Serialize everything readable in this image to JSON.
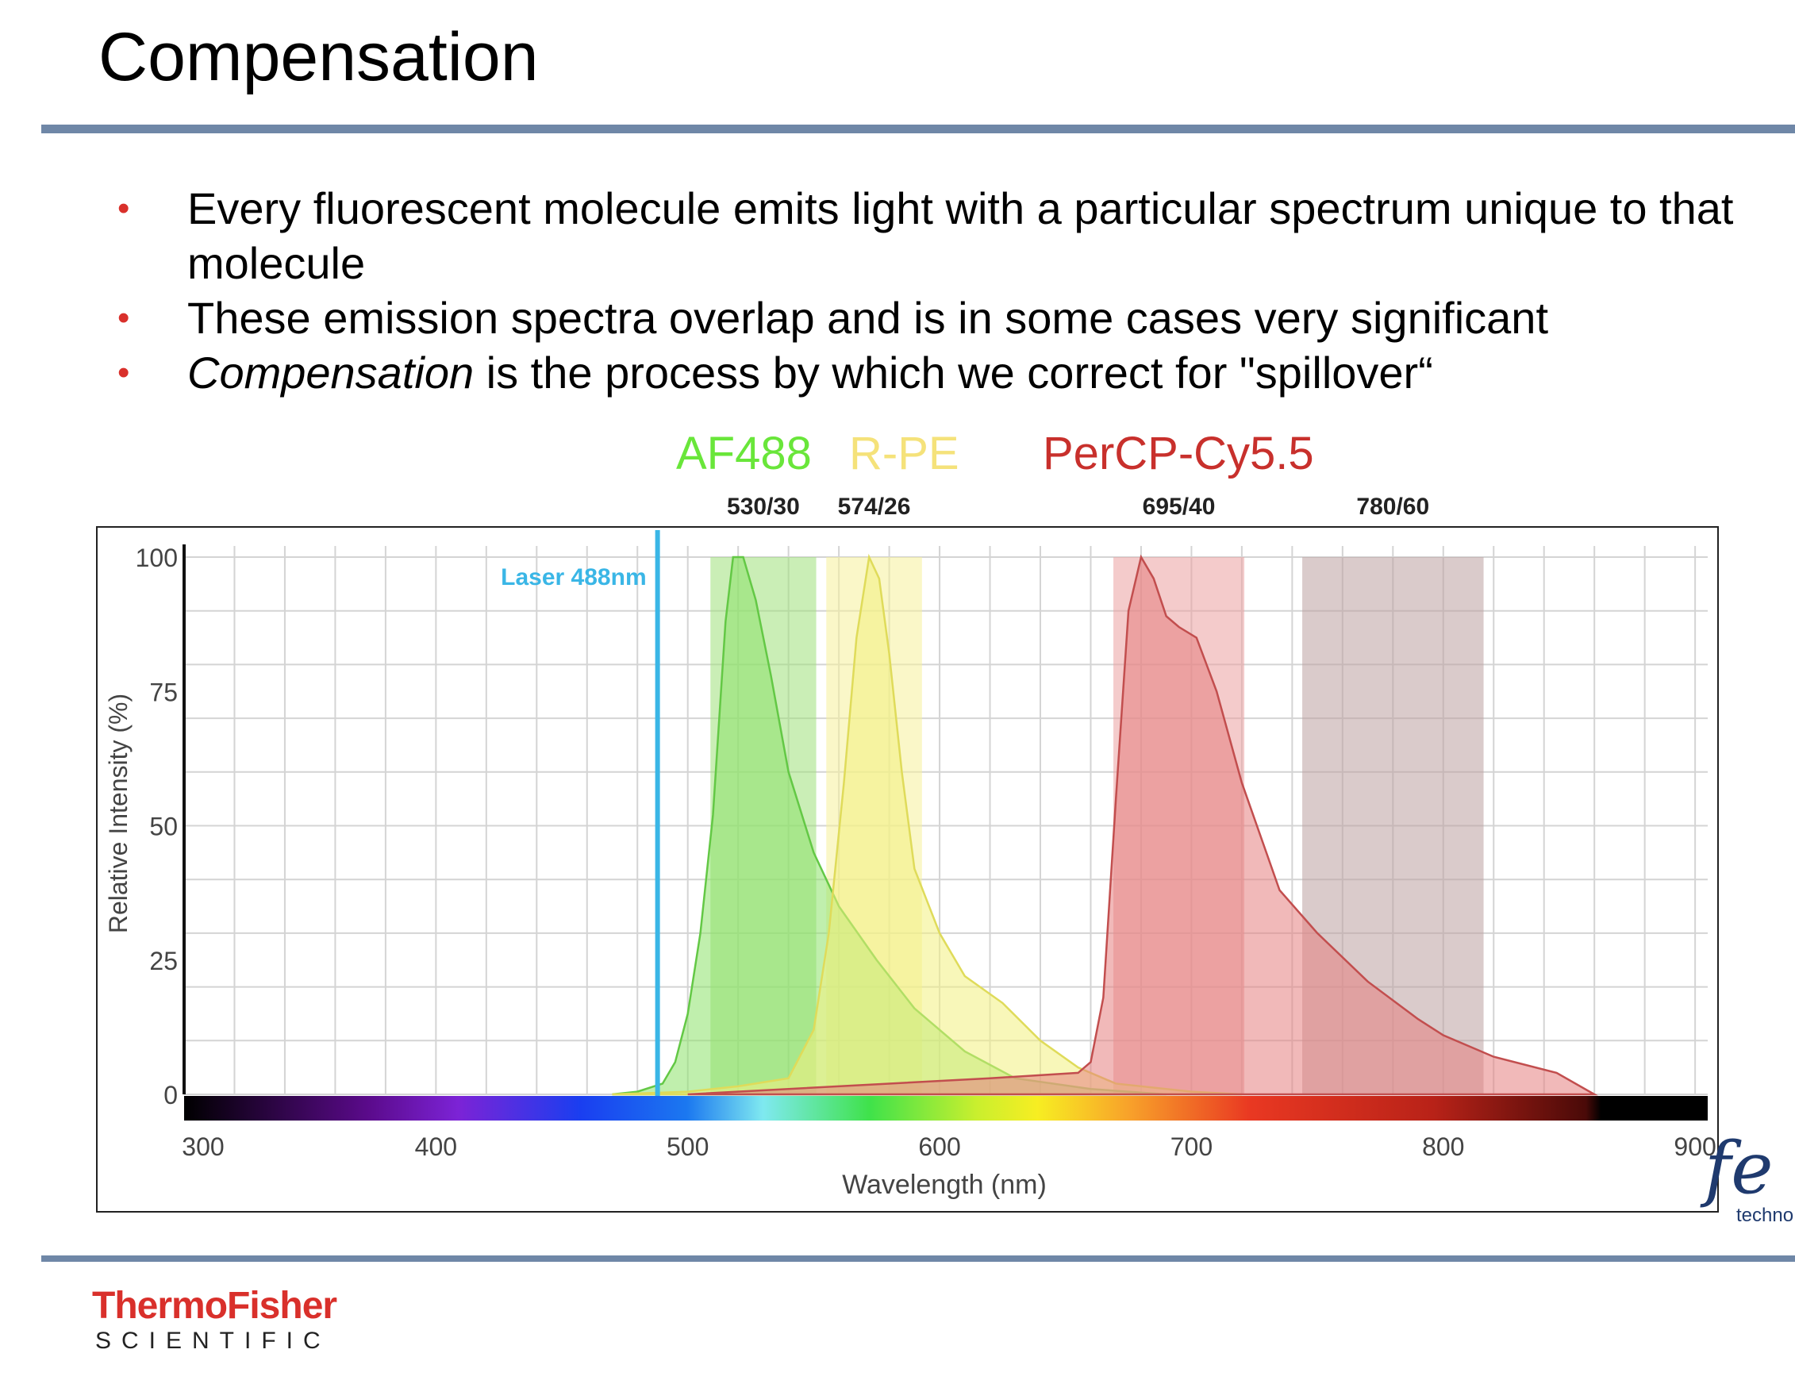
{
  "title": "Compensation",
  "bullets": [
    {
      "prefix": "",
      "text": "Every fluorescent molecule emits light with a particular spectrum unique to that molecule"
    },
    {
      "prefix": "",
      "text": "These emission spectra overlap  and is in some cases very significant"
    },
    {
      "prefix": "Compensation",
      "text": " is the process by which we correct for \"spillover“"
    }
  ],
  "bullet_symbol": "•",
  "legend": [
    {
      "label": "AF488",
      "color": "#69e63a"
    },
    {
      "label": "R-PE",
      "color": "#f5e27a"
    },
    {
      "label": "PerCP-Cy5.5",
      "color": "#c8302c"
    }
  ],
  "brand": {
    "name": "ThermoFisher",
    "sub": "SCIENTIFIC"
  },
  "corner_logo": {
    "mark": "fe",
    "text": "techno"
  },
  "chart_data": {
    "type": "area",
    "xlabel": "Wavelength (nm)",
    "ylabel": "Relative Intensity (%)",
    "xlim": [
      300,
      905
    ],
    "ylim": [
      0,
      100
    ],
    "xticks": [
      300,
      400,
      500,
      600,
      700,
      800,
      900
    ],
    "yticks": [
      0,
      25,
      50,
      75,
      100
    ],
    "grid": true,
    "laser": {
      "label": "Laser 488nm",
      "wavelength": 488,
      "color": "#3ab6e6"
    },
    "filters": [
      {
        "label": "530/30",
        "center": 530,
        "width": 30,
        "color": "#9ee07a"
      },
      {
        "label": "574/26",
        "center": 574,
        "width": 26,
        "color": "#f6f09a"
      },
      {
        "label": "695/40",
        "center": 695,
        "width": 40,
        "color": "#eba0a0"
      },
      {
        "label": "780/60",
        "center": 780,
        "width": 60,
        "color": "#bca0a0"
      }
    ],
    "series": [
      {
        "name": "AF488",
        "fill": "#8de26a",
        "stroke": "#63c845",
        "x": [
          470,
          480,
          490,
          495,
          500,
          505,
          510,
          515,
          518,
          522,
          527,
          533,
          540,
          550,
          560,
          575,
          590,
          610,
          630,
          660,
          690
        ],
        "y": [
          0,
          0.5,
          2,
          6,
          15,
          30,
          52,
          88,
          100,
          100,
          92,
          78,
          60,
          45,
          35,
          25,
          16,
          8,
          3,
          1,
          0
        ]
      },
      {
        "name": "R-PE",
        "fill": "#f3f080",
        "stroke": "#dfdb5a",
        "x": [
          470,
          500,
          520,
          540,
          550,
          556,
          562,
          567,
          572,
          576,
          580,
          585,
          590,
          600,
          610,
          625,
          640,
          655,
          670,
          700,
          720
        ],
        "y": [
          0,
          0.5,
          1.5,
          3,
          12,
          30,
          58,
          85,
          100,
          96,
          82,
          60,
          42,
          30,
          22,
          17,
          10,
          5,
          2,
          0.5,
          0
        ]
      },
      {
        "name": "PerCP-Cy5.5",
        "fill": "#e58080",
        "stroke": "#c24e4e",
        "x": [
          500,
          540,
          580,
          620,
          655,
          660,
          665,
          670,
          675,
          680,
          685,
          690,
          695,
          702,
          710,
          720,
          735,
          750,
          770,
          790,
          800,
          820,
          845,
          860
        ],
        "y": [
          0,
          1,
          2,
          3,
          4,
          6,
          18,
          55,
          90,
          100,
          96,
          89,
          87,
          85,
          75,
          58,
          38,
          30,
          21,
          14,
          11,
          7,
          4,
          0
        ]
      }
    ]
  }
}
